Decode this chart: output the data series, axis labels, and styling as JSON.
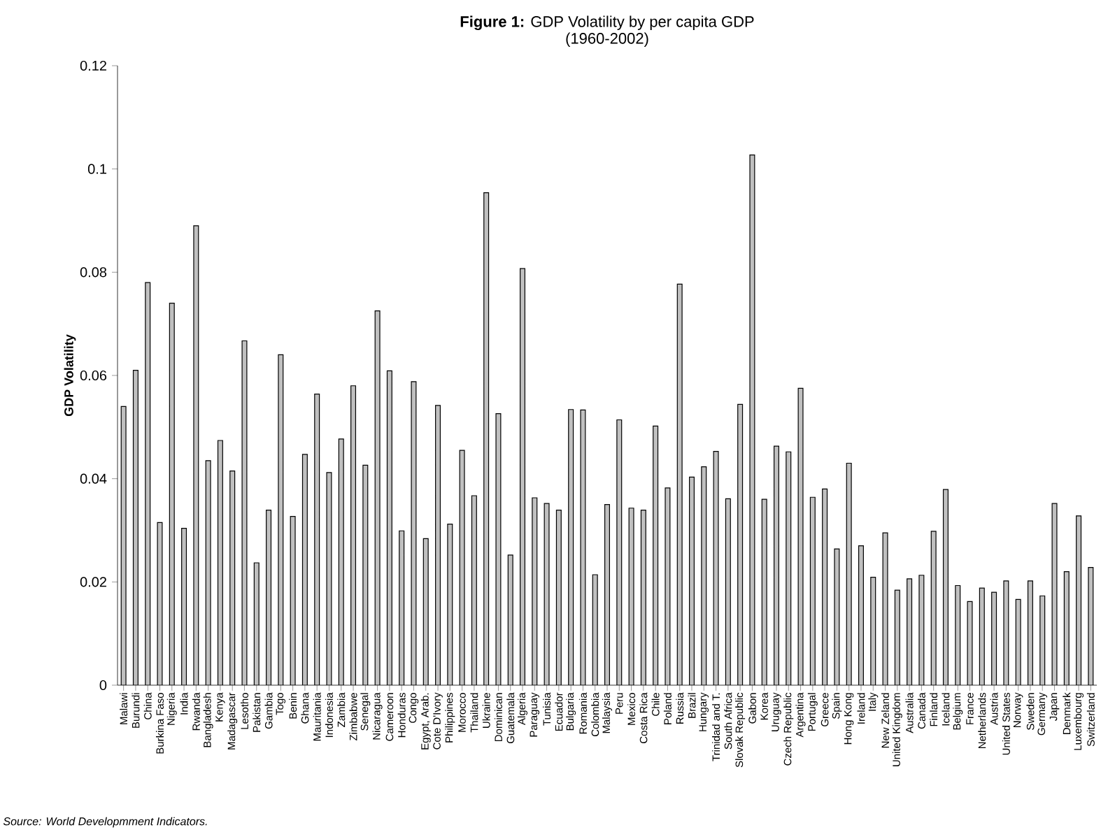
{
  "chart_data": {
    "type": "bar",
    "title": "**Figure 1:** GDP Volatility by per capita GDP",
    "subtitle": "(1960-2002)",
    "ylabel": "GDP Volatility",
    "annotations": [
      "Source: World Developmment Indicators."
    ],
    "categories": [
      "Malawi",
      "Burundi",
      "China",
      "Burkina Faso",
      "Nigeria",
      "India",
      "Rwanda",
      "Bangladesh",
      "Kenya",
      "Madagascar",
      "Lesotho",
      "Pakistan",
      "Gambia",
      "Togo",
      "Benin",
      "Ghana",
      "Mauritania",
      "Indonesia",
      "Zambia",
      "Zimbabwe",
      "Senegal",
      "Nicaragua",
      "Cameroon",
      "Honduras",
      "Congo",
      "Egypt, Arab.",
      "Cote D'Ivory",
      "Philippines",
      "Morocco",
      "Thailand",
      "Ukraine",
      "Dominican",
      "Guatemala",
      "Algeria",
      "Paraguay",
      "Tunisia",
      "Ecuador",
      "Bulgaria",
      "Romania",
      "Colombia",
      "Malaysia",
      "Peru",
      "Mexico",
      "Costa Rica",
      "Chile",
      "Poland",
      "Russia",
      "Brazil",
      "Hungary",
      "Trinidad and T.",
      "South Africa",
      "Slovak Republic",
      "Gabon",
      "Korea",
      "Uruguay",
      "Czech Republic",
      "Argentina",
      "Portugal",
      "Greece",
      "Spain",
      "Hong Kong",
      "Ireland",
      "Italy",
      "New Zeland",
      "United Kingdom",
      "Australia",
      "Canada",
      "Finland",
      "Iceland",
      "Belgium",
      "France",
      "Netherlands",
      "Austria",
      "United States",
      "Norway",
      "Sweden",
      "Germany",
      "Japan",
      "Denmark",
      "Luxembourg",
      "Switzerland"
    ],
    "values": [
      0.054,
      0.061,
      0.078,
      0.0315,
      0.074,
      0.0304,
      0.089,
      0.0435,
      0.0474,
      0.0415,
      0.0667,
      0.0237,
      0.0339,
      0.064,
      0.0327,
      0.0447,
      0.0564,
      0.0412,
      0.0477,
      0.058,
      0.0426,
      0.0725,
      0.0609,
      0.0299,
      0.0588,
      0.0284,
      0.0542,
      0.0312,
      0.0455,
      0.0367,
      0.0954,
      0.0526,
      0.0252,
      0.0807,
      0.0363,
      0.0352,
      0.0339,
      0.0534,
      0.0533,
      0.0214,
      0.035,
      0.0514,
      0.0343,
      0.0339,
      0.0502,
      0.0382,
      0.0777,
      0.0403,
      0.0423,
      0.0453,
      0.0361,
      0.0544,
      0.1027,
      0.036,
      0.0463,
      0.0452,
      0.0575,
      0.0364,
      0.038,
      0.0264,
      0.043,
      0.027,
      0.0209,
      0.0295,
      0.0184,
      0.0206,
      0.0213,
      0.0298,
      0.0379,
      0.0193,
      0.0162,
      0.0188,
      0.018,
      0.0202,
      0.0166,
      0.0202,
      0.0173,
      0.0352,
      0.022,
      0.0328,
      0.0228
    ],
    "color": "#c0c0c0",
    "ylim": [
      0,
      0.12
    ],
    "yticks": [
      0,
      0.02,
      0.04,
      0.06,
      0.08,
      0.1,
      0.12
    ],
    "grid": false
  }
}
